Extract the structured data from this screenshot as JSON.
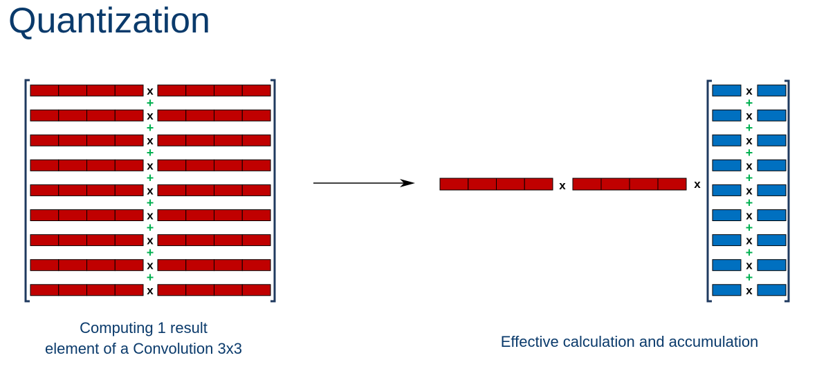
{
  "slide": {
    "title": "Quantization",
    "caption_left": "Computing 1 result\nelement of a Convolution 3x3",
    "caption_right": "Effective calculation and accumulation"
  },
  "symbols": {
    "multiply": "x",
    "add": "+"
  },
  "diagram": {
    "left_rows": 9,
    "segments_per_vector": 4,
    "right_rows": 9
  },
  "colors": {
    "title_text": "#0a3a6b",
    "caption_text": "#0a3a6b",
    "red_fill": "#c00000",
    "blue_fill": "#0070c0",
    "plus_green": "#00b050",
    "bracket": "#1f3a5f",
    "arrow": "#000000"
  }
}
